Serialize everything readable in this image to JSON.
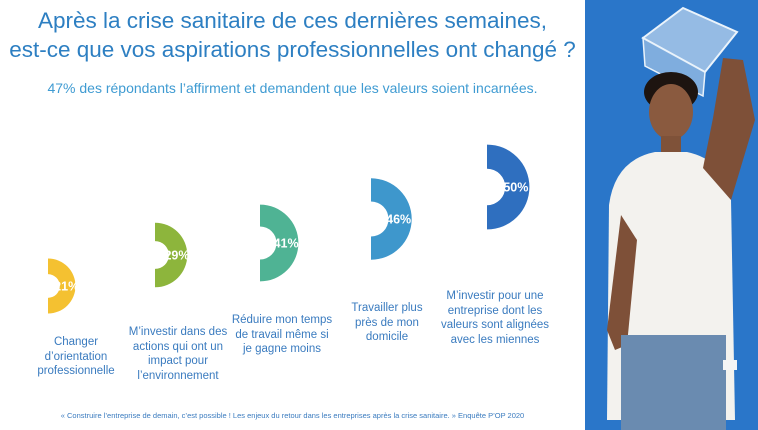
{
  "title_line1": "Après la crise sanitaire de ces dernières semaines,",
  "title_line2": "est-ce que vos aspirations professionnelles ont changé ?",
  "subtitle": "47% des répondants l’affirment et demandent que les valeurs soient incarnées.",
  "source": "« Construire l’entreprise de demain, c’est possible ! Les enjeux du retour dans les entreprises après la crise sanitaire. » Enquête P’OP 2020",
  "chart_data": {
    "type": "pie",
    "title": "Après la crise sanitaire de ces dernières semaines, est-ce que vos aspirations professionnelles ont changé ?",
    "categories": [
      "Changer d’orientation professionnelle",
      "M’investir dans des actions qui ont un impact pour l’environnement",
      "Réduire mon temps de travail même si je gagne moins",
      "Travailler plus près de mon domicile",
      "M’investir pour une entreprise dont les valeurs sont alignées avec les miennes"
    ],
    "values": [
      21,
      29,
      41,
      46,
      50
    ],
    "labels": [
      "21%",
      "29%",
      "41%",
      "46%",
      "50%"
    ],
    "label_lines": [
      [
        "Changer",
        "d’orientation",
        "professionnelle"
      ],
      [
        "M’investir dans des",
        "actions qui ont un",
        "impact pour",
        "l’environnement"
      ],
      [
        "Réduire mon temps",
        "de travail même si",
        "je gagne moins"
      ],
      [
        "Travailler plus",
        "près de mon",
        "domicile"
      ],
      [
        "M’investir pour une",
        "entreprise dont les",
        "valeurs sont alignées",
        "avec les miennes"
      ]
    ],
    "colors": [
      "#f4c131",
      "#8db53c",
      "#4fb394",
      "#3e97cc",
      "#2f6fbf"
    ]
  },
  "photo": {
    "shirt": "#f3f2ee",
    "jeans": "#6a8bb0",
    "bg": "#2a76c9"
  }
}
